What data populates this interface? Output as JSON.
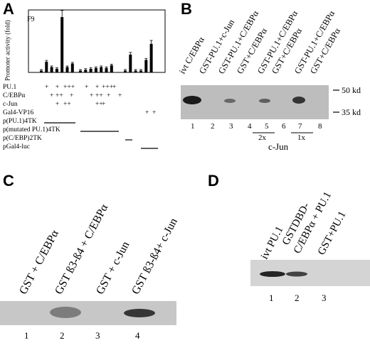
{
  "panels": {
    "a": {
      "letter": "A",
      "inset_label": "F9",
      "y_axis_label": "Promoter activity (fold)",
      "rows": [
        {
          "label": "PU.1",
          "marks": [
            "",
            "+",
            "",
            "+",
            "+++",
            "",
            "+",
            "",
            "+",
            "+++",
            "",
            "+",
            "",
            "",
            "",
            ""
          ]
        },
        {
          "label": "C/EBPα",
          "marks": [
            "",
            "",
            "+",
            "++",
            "",
            "+",
            "",
            "+",
            "++",
            "",
            "+",
            "",
            "+",
            "",
            "",
            ""
          ]
        },
        {
          "label": "c-Jun",
          "marks": [
            "",
            "",
            "",
            "+",
            "++",
            "",
            "",
            "",
            "++",
            "+",
            "",
            "",
            "",
            "",
            "",
            ""
          ]
        },
        {
          "label": "Gal4-VP16",
          "marks": [
            "",
            "",
            "",
            "",
            "",
            "",
            "",
            "",
            "",
            "",
            "",
            "",
            "",
            "+",
            "+",
            ""
          ]
        }
      ],
      "constructs": [
        {
          "label": "p(PU.1)4TK"
        },
        {
          "label": "p(mutated PU.1)4TK"
        },
        {
          "label": "p(C/EBP)2TK"
        },
        {
          "label": "pGal4-luc"
        }
      ],
      "chart_data": {
        "type": "bar",
        "ylabel": "Promoter activity (fold)",
        "groups": [
          {
            "construct": "p(PU.1)4TK",
            "values": [
              1,
              6,
              3,
              2,
              31,
              3,
              5
            ]
          },
          {
            "construct": "p(mutated PU.1)4TK",
            "values": [
              1,
              1.5,
              2,
              2.5,
              3,
              2.5,
              4
            ]
          },
          {
            "construct": "p(C/EBP)2TK",
            "values": [
              1,
              10,
              1
            ]
          },
          {
            "construct": "pGal4-luc",
            "values": [
              1,
              7,
              16
            ]
          }
        ]
      }
    },
    "b": {
      "letter": "B",
      "lane_headers": [
        "ivt C/EBPα",
        "GST-PU.1+c-Jun",
        "GST-PU.1+C/EBPα",
        "GST+C/EBPα",
        "GST-PU.1+C/EBPα",
        "GST+C/EBPα",
        "GST-PU.1+C/EBPα",
        "GST+C/EBPα"
      ],
      "lane_numbers": [
        "1",
        "2",
        "3",
        "4",
        "5",
        "6",
        "7",
        "8"
      ],
      "markers": [
        "50 kd",
        "35 kd"
      ],
      "ratio_labels": [
        "2x",
        "1x"
      ],
      "group_label": "c-Jun"
    },
    "c": {
      "letter": "C",
      "lane_headers": [
        "GST + C/EBPα",
        "GST ß3-ß4 + C/EBPα",
        "GST + c-Jun",
        "GST ß3-ß4+ c-Jun"
      ],
      "lane_numbers": [
        "1",
        "2",
        "3",
        "4"
      ]
    },
    "d": {
      "letter": "D",
      "lane_headers": [
        "ivt PU.1",
        "GSTDBD-",
        "C/EBPα + PU.1",
        "GST+PU.1"
      ],
      "lane_numbers": [
        "1",
        "2",
        "3"
      ]
    }
  },
  "colors": {
    "gel_background": "#c9c9c9",
    "band": "#1a1a1a",
    "text": "#000000"
  }
}
